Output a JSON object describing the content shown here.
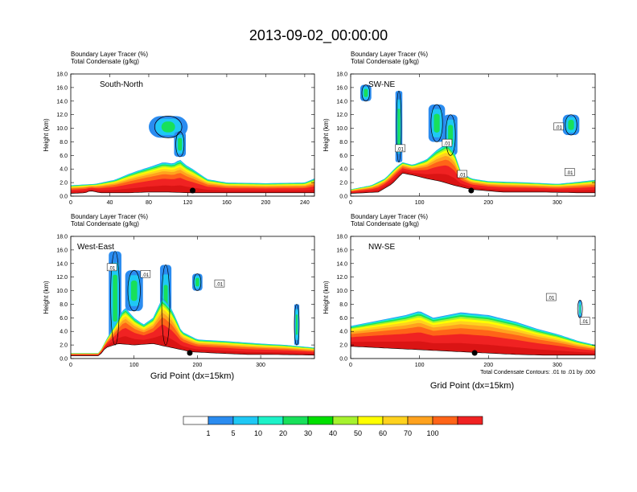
{
  "title": "2013-09-02_00:00:00",
  "colors": {
    "levels": [
      "#ffffff",
      "#2b8cf0",
      "#1fc8f5",
      "#1df2c8",
      "#18e05a",
      "#00e000",
      "#a6f22e",
      "#ffff00",
      "#ffd21e",
      "#ffa21e",
      "#ff6418",
      "#f02222"
    ],
    "contour": "#000000",
    "background": "#ffffff"
  },
  "colorbar": {
    "labels": [
      "1",
      "5",
      "10",
      "20",
      "30",
      "40",
      "50",
      "60",
      "70",
      "100"
    ]
  },
  "xlabel": "Grid Point (dx=15km)",
  "footnote": "Total Condensate Contours: .01 to .01 by .000",
  "chart_data": [
    {
      "type": "heatmap",
      "name": "South-North",
      "title_line1": "Boundary Layer Tracer   (%)",
      "title_line2": "Total Condensate   (g/kg)",
      "ylabel": "Height (km)",
      "xlim": [
        0,
        250
      ],
      "ylim": [
        0,
        18
      ],
      "xticks": [
        0,
        40,
        80,
        120,
        160,
        200,
        240
      ],
      "yticks": [
        "0.0",
        "2.0",
        "4.0",
        "6.0",
        "8.0",
        "10.0",
        "12.0",
        "14.0",
        "16.0",
        "18.0"
      ],
      "show_xlabel": false,
      "boundary_layer_top": [
        [
          0,
          1.6
        ],
        [
          25,
          1.8
        ],
        [
          45,
          2.4
        ],
        [
          60,
          3.3
        ],
        [
          70,
          3.8
        ],
        [
          85,
          4.5
        ],
        [
          95,
          5.0
        ],
        [
          105,
          4.8
        ],
        [
          112,
          5.4
        ],
        [
          118,
          4.6
        ],
        [
          125,
          4.0
        ],
        [
          132,
          3.3
        ],
        [
          140,
          2.5
        ],
        [
          160,
          2.0
        ],
        [
          200,
          1.9
        ],
        [
          240,
          2.0
        ],
        [
          250,
          2.6
        ]
      ],
      "terrain": [
        [
          0,
          0.4
        ],
        [
          15,
          0.5
        ],
        [
          20,
          0.8
        ],
        [
          30,
          0.5
        ],
        [
          60,
          0.5
        ],
        [
          80,
          0.6
        ],
        [
          100,
          0.6
        ],
        [
          120,
          0.5
        ],
        [
          160,
          0.5
        ],
        [
          200,
          0.5
        ],
        [
          250,
          0.5
        ]
      ],
      "cloud_plumes": [
        {
          "x": 100,
          "ymin": 8.6,
          "ymax": 11.8,
          "half_width": 20
        },
        {
          "x": 112,
          "ymin": 5.8,
          "ymax": 9.5,
          "half_width": 6
        }
      ],
      "contour_labels": [],
      "marker_x": 125
    },
    {
      "type": "heatmap",
      "name": "SW-NE",
      "title_line1": "Boundary Layer Tracer   (%)",
      "title_line2": "Total Condensate   (g/kg)",
      "ylabel": "Height (km)",
      "xlim": [
        0,
        355
      ],
      "ylim": [
        0,
        18
      ],
      "xticks": [
        0,
        100,
        200,
        300
      ],
      "yticks": [
        "0.0",
        "2.0",
        "4.0",
        "6.0",
        "8.0",
        "10.0",
        "12.0",
        "14.0",
        "16.0",
        "18.0"
      ],
      "show_xlabel": false,
      "boundary_layer_top": [
        [
          0,
          1.0
        ],
        [
          30,
          1.6
        ],
        [
          50,
          2.6
        ],
        [
          65,
          4.2
        ],
        [
          75,
          5.0
        ],
        [
          90,
          4.6
        ],
        [
          110,
          5.4
        ],
        [
          125,
          6.8
        ],
        [
          140,
          7.8
        ],
        [
          150,
          6.6
        ],
        [
          160,
          3.6
        ],
        [
          175,
          2.6
        ],
        [
          200,
          2.2
        ],
        [
          260,
          2.0
        ],
        [
          300,
          1.8
        ],
        [
          330,
          2.1
        ],
        [
          355,
          2.4
        ]
      ],
      "terrain": [
        [
          0,
          0.4
        ],
        [
          40,
          0.6
        ],
        [
          60,
          1.8
        ],
        [
          75,
          3.4
        ],
        [
          95,
          3.0
        ],
        [
          110,
          2.6
        ],
        [
          130,
          2.2
        ],
        [
          150,
          1.6
        ],
        [
          175,
          1.0
        ],
        [
          220,
          0.6
        ],
        [
          280,
          0.6
        ],
        [
          330,
          0.5
        ],
        [
          355,
          0.5
        ]
      ],
      "cloud_plumes": [
        {
          "x": 22,
          "ymin": 14.0,
          "ymax": 16.4,
          "half_width": 8
        },
        {
          "x": 70,
          "ymin": 5.0,
          "ymax": 15.5,
          "half_width": 5
        },
        {
          "x": 125,
          "ymin": 8.0,
          "ymax": 13.5,
          "half_width": 12
        },
        {
          "x": 145,
          "ymin": 6.0,
          "ymax": 12.0,
          "half_width": 10
        },
        {
          "x": 320,
          "ymin": 9.0,
          "ymax": 12.0,
          "half_width": 12
        }
      ],
      "contour_labels": [
        {
          "x": 72,
          "y": 7.0,
          "text": ".01"
        },
        {
          "x": 140,
          "y": 7.8,
          "text": ".01"
        },
        {
          "x": 162,
          "y": 3.2,
          "text": ".01"
        },
        {
          "x": 302,
          "y": 10.2,
          "text": ".01"
        },
        {
          "x": 318,
          "y": 3.5,
          "text": ".01"
        }
      ],
      "marker_x": 175
    },
    {
      "type": "heatmap",
      "name": "West-East",
      "title_line1": "Boundary Layer Tracer   (%)",
      "title_line2": "Total Condensate   (g/kg)",
      "ylabel": "Height (km)",
      "xlim": [
        0,
        385
      ],
      "ylim": [
        0,
        18
      ],
      "xticks": [
        0,
        100,
        200,
        300
      ],
      "yticks": [
        "0.0",
        "2.0",
        "4.0",
        "6.0",
        "8.0",
        "10.0",
        "12.0",
        "14.0",
        "16.0",
        "18.0"
      ],
      "show_xlabel": true,
      "boundary_layer_top": [
        [
          0,
          0.8
        ],
        [
          45,
          0.8
        ],
        [
          55,
          2.6
        ],
        [
          70,
          5.0
        ],
        [
          85,
          7.6
        ],
        [
          100,
          6.0
        ],
        [
          115,
          5.0
        ],
        [
          130,
          6.0
        ],
        [
          145,
          9.0
        ],
        [
          160,
          7.2
        ],
        [
          175,
          4.0
        ],
        [
          200,
          2.8
        ],
        [
          240,
          2.6
        ],
        [
          270,
          2.4
        ],
        [
          300,
          2.2
        ],
        [
          340,
          2.0
        ],
        [
          385,
          1.6
        ]
      ],
      "terrain": [
        [
          0,
          0.4
        ],
        [
          45,
          0.4
        ],
        [
          55,
          1.6
        ],
        [
          75,
          2.2
        ],
        [
          100,
          2.0
        ],
        [
          130,
          2.2
        ],
        [
          160,
          1.6
        ],
        [
          190,
          1.0
        ],
        [
          230,
          0.8
        ],
        [
          280,
          0.6
        ],
        [
          320,
          0.6
        ],
        [
          385,
          0.5
        ]
      ],
      "cloud_plumes": [
        {
          "x": 70,
          "ymin": 2.0,
          "ymax": 15.8,
          "half_width": 10
        },
        {
          "x": 100,
          "ymin": 7.0,
          "ymax": 13.0,
          "half_width": 14
        },
        {
          "x": 150,
          "ymin": 2.0,
          "ymax": 13.8,
          "half_width": 9
        },
        {
          "x": 200,
          "ymin": 10.0,
          "ymax": 12.5,
          "half_width": 8
        },
        {
          "x": 357,
          "ymin": 2.0,
          "ymax": 8.0,
          "half_width": 4
        }
      ],
      "contour_labels": [
        {
          "x": 65,
          "y": 13.4,
          "text": ".01"
        },
        {
          "x": 118,
          "y": 12.4,
          "text": ".01"
        },
        {
          "x": 235,
          "y": 11.0,
          "text": ".01"
        }
      ],
      "marker_x": 188
    },
    {
      "type": "heatmap",
      "name": "NW-SE",
      "title_line1": "Boundary Layer Tracer   (%)",
      "title_line2": "Total Condensate   (g/kg)",
      "ylabel": "Height (km)",
      "xlim": [
        0,
        355
      ],
      "ylim": [
        0,
        18
      ],
      "xticks": [
        0,
        100,
        200,
        300
      ],
      "yticks": [
        "0.0",
        "2.0",
        "4.0",
        "6.0",
        "8.0",
        "10.0",
        "12.0",
        "14.0",
        "16.0",
        "18.0"
      ],
      "show_xlabel": true,
      "boundary_layer_top": [
        [
          0,
          4.8
        ],
        [
          40,
          5.6
        ],
        [
          80,
          6.4
        ],
        [
          100,
          7.0
        ],
        [
          120,
          6.0
        ],
        [
          160,
          6.8
        ],
        [
          200,
          6.4
        ],
        [
          240,
          5.4
        ],
        [
          270,
          4.4
        ],
        [
          300,
          3.6
        ],
        [
          330,
          2.6
        ],
        [
          355,
          2.0
        ]
      ],
      "terrain": [
        [
          0,
          1.8
        ],
        [
          40,
          1.6
        ],
        [
          80,
          1.4
        ],
        [
          120,
          1.2
        ],
        [
          160,
          1.0
        ],
        [
          200,
          0.8
        ],
        [
          240,
          0.6
        ],
        [
          280,
          0.5
        ],
        [
          320,
          0.5
        ],
        [
          355,
          0.5
        ]
      ],
      "cloud_plumes": [
        {
          "x": 333,
          "ymin": 6.0,
          "ymax": 8.6,
          "half_width": 2
        }
      ],
      "contour_labels": [
        {
          "x": 291,
          "y": 9.0,
          "text": ".01"
        },
        {
          "x": 340,
          "y": 5.5,
          "text": ".01"
        }
      ],
      "marker_x": 180
    }
  ]
}
